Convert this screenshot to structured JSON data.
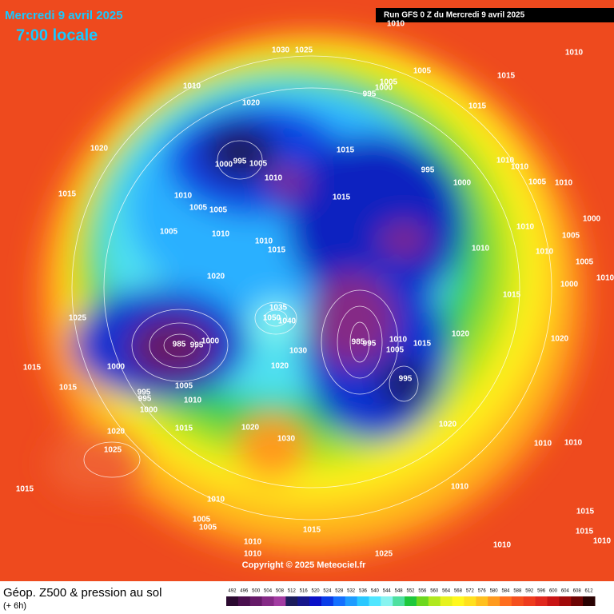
{
  "header": {
    "date": "Mercredi 9 avril 2025",
    "time": "7:00 locale",
    "run": "Run GFS 0 Z du Mercredi 9 avril 2025"
  },
  "copyright": "Copyright © 2025 Meteociel.fr",
  "footer": {
    "title": "Géop. Z500 & pression au sol",
    "lead": "(+ 6h)"
  },
  "legend": {
    "levels": [
      492,
      496,
      500,
      504,
      508,
      512,
      516,
      520,
      524,
      528,
      532,
      536,
      540,
      544,
      548,
      552,
      556,
      560,
      564,
      568,
      572,
      576,
      580,
      584,
      588,
      592,
      596,
      600,
      604,
      608,
      612
    ],
    "colors": [
      "#2b0a30",
      "#4a0f4e",
      "#661a68",
      "#852a86",
      "#a23ca2",
      "#1c1c5c",
      "#16168c",
      "#0a10c8",
      "#0a3ce8",
      "#1470ff",
      "#1e9cff",
      "#2ac8ff",
      "#50e6ff",
      "#88f4f0",
      "#4ee0a0",
      "#1ec83c",
      "#6cd81e",
      "#b0e81e",
      "#e6f21e",
      "#fff81e",
      "#ffe01e",
      "#ffc01e",
      "#ff9a1e",
      "#ff6e1e",
      "#f5501e",
      "#ee3c1e",
      "#e0281e",
      "#c81414",
      "#a00a0a",
      "#6e0505",
      "#2a0202"
    ]
  },
  "pressure_labels": [
    1010,
    1030,
    1025,
    1010,
    1015,
    1005,
    1000,
    995,
    1010,
    1020,
    1005,
    1015,
    1020,
    1000,
    995,
    1005,
    1010,
    1015,
    995,
    1010,
    1010,
    1005,
    1010,
    1000,
    1015,
    1010,
    1015,
    1005,
    1005,
    1000,
    1005,
    1010,
    1010,
    1005,
    1010,
    1015,
    1010,
    1010,
    1005,
    1020,
    1010,
    1000,
    1035,
    1050,
    1040,
    1015,
    1025,
    985,
    995,
    1000,
    985,
    995,
    1010,
    1005,
    1015,
    1020,
    1020,
    1030,
    1000,
    1015,
    1020,
    995,
    1015,
    1005,
    995,
    995,
    1010,
    1000,
    1020,
    1015,
    1020,
    1020,
    1030,
    1010,
    1010,
    1025,
    1015,
    1010,
    1010,
    1005,
    1005,
    1015,
    1015,
    1015,
    1010,
    1010,
    1010,
    1010,
    1025
  ]
}
